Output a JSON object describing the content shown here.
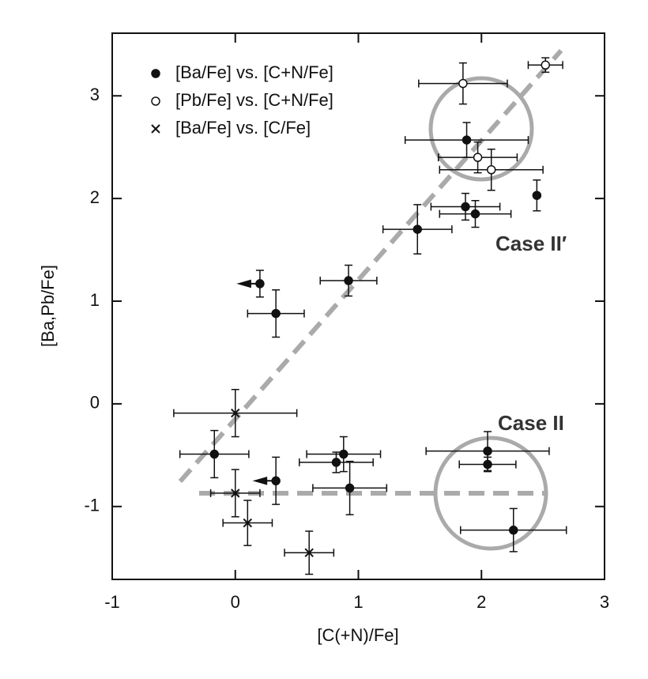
{
  "chart_data": {
    "type": "scatter",
    "x_label": "[C(+N)/Fe]",
    "y_label": "[Ba,Pb/Fe]",
    "xlim": [
      -1,
      3
    ],
    "ylim": [
      -1.71,
      3.61
    ],
    "xticks": [
      -1,
      0,
      1,
      2,
      3
    ],
    "yticks": [
      -1,
      0,
      1,
      2,
      3
    ],
    "legend": "upper left",
    "annotations": [
      "Case II′",
      "Case II"
    ],
    "series": [
      {
        "name": "[Ba/Fe] vs. [C+N/Fe]",
        "color": "#111111",
        "marker": "filled",
        "x": [
          1.88,
          1.87,
          1.95,
          2.45,
          1.48,
          0.92,
          0.2,
          0.33,
          -0.17,
          0.33,
          0.82,
          0.88,
          0.93,
          2.05,
          2.05,
          2.26
        ],
        "values": [
          2.57,
          1.92,
          1.85,
          2.03,
          1.7,
          1.2,
          1.17,
          0.88,
          -0.49,
          -0.75,
          -0.57,
          -0.49,
          -0.82,
          -0.46,
          -0.59,
          -1.23
        ],
        "x_errors": [
          0.5,
          0.28,
          0.29,
          null,
          0.28,
          0.23,
          null,
          0.23,
          0.28,
          null,
          0.3,
          0.3,
          0.3,
          0.5,
          0.23,
          0.43
        ],
        "y_errors": [
          0.17,
          0.13,
          0.13,
          0.15,
          0.24,
          0.15,
          0.13,
          0.23,
          0.23,
          0.23,
          0.1,
          0.17,
          0.26,
          0.19,
          0.07,
          0.21
        ],
        "x_upper_limits": [
          false,
          false,
          false,
          false,
          false,
          false,
          true,
          false,
          false,
          true,
          false,
          false,
          false,
          false,
          false,
          false
        ]
      },
      {
        "name": "[Pb/Fe] vs. [C+N/Fe]",
        "color": "#111111",
        "marker": "open",
        "x": [
          1.85,
          2.52,
          1.97,
          2.08
        ],
        "values": [
          3.12,
          3.3,
          2.4,
          2.28
        ],
        "x_errors": [
          0.36,
          0.14,
          0.32,
          0.42
        ],
        "y_errors": [
          0.2,
          0.07,
          0.15,
          0.2
        ]
      },
      {
        "name": "[Ba/Fe] vs. [C/Fe]",
        "color": "#111111",
        "marker": "cross",
        "x": [
          0.0,
          0.0,
          0.1,
          0.6
        ],
        "values": [
          -0.09,
          -0.87,
          -1.16,
          -1.45
        ],
        "x_errors": [
          0.5,
          0.2,
          0.2,
          0.2
        ],
        "y_errors": [
          0.23,
          0.23,
          0.22,
          0.21
        ]
      }
    ]
  }
}
